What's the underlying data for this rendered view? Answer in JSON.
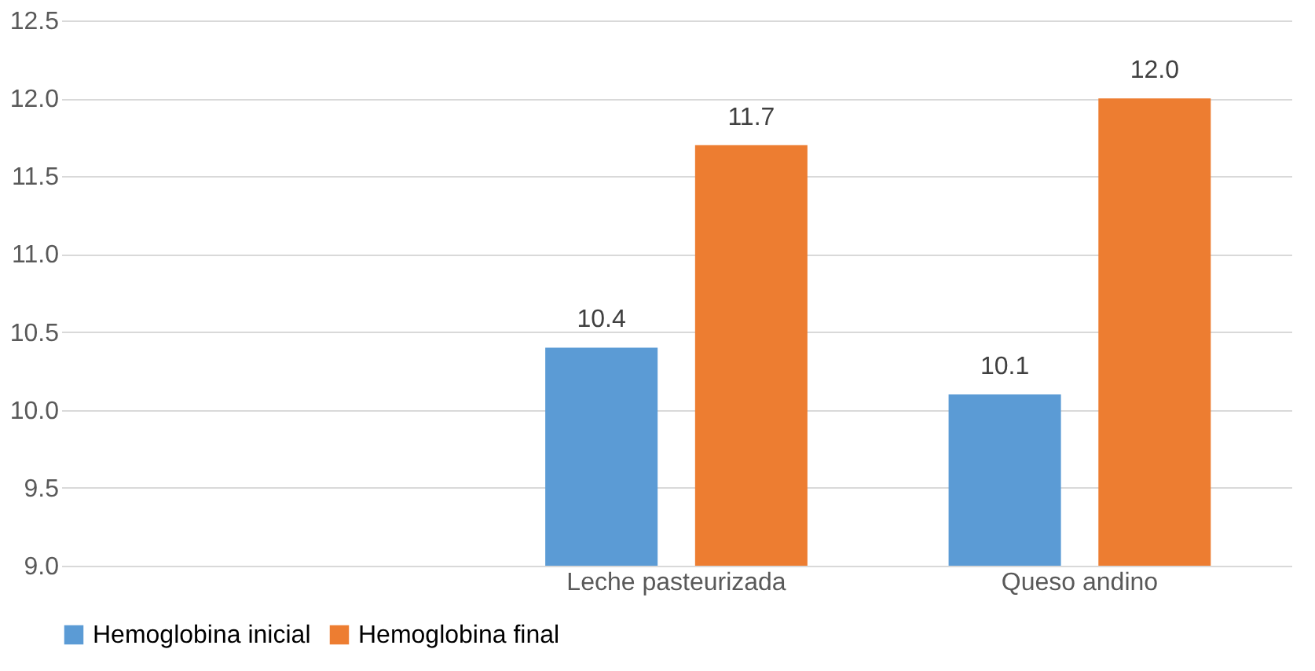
{
  "chart_data": {
    "type": "bar",
    "categories": [
      null,
      "Leche pasteurizada",
      "Queso andino"
    ],
    "series": [
      {
        "name": "Hemoglobina inicial",
        "color": "#5b9bd5",
        "values": [
          null,
          10.4,
          10.1
        ],
        "value_labels": [
          null,
          "10.4",
          "10.1"
        ]
      },
      {
        "name": "Hemoglobina final",
        "color": "#ed7d31",
        "values": [
          null,
          11.7,
          12.0
        ],
        "value_labels": [
          null,
          "11.7",
          "12.0"
        ]
      }
    ],
    "ylim": [
      9.0,
      12.5
    ],
    "yticks": [
      {
        "value": 9,
        "label": "9.0"
      },
      {
        "value": 9.5,
        "label": "9.5"
      },
      {
        "value": 10,
        "label": "10.0"
      },
      {
        "value": 10.5,
        "label": "10.5"
      },
      {
        "value": 11,
        "label": "11.0"
      },
      {
        "value": 11.5,
        "label": "11.5"
      },
      {
        "value": 12,
        "label": "12.0"
      },
      {
        "value": 12.5,
        "label": "12.5"
      }
    ],
    "grid": "y",
    "legend": "bottom"
  }
}
